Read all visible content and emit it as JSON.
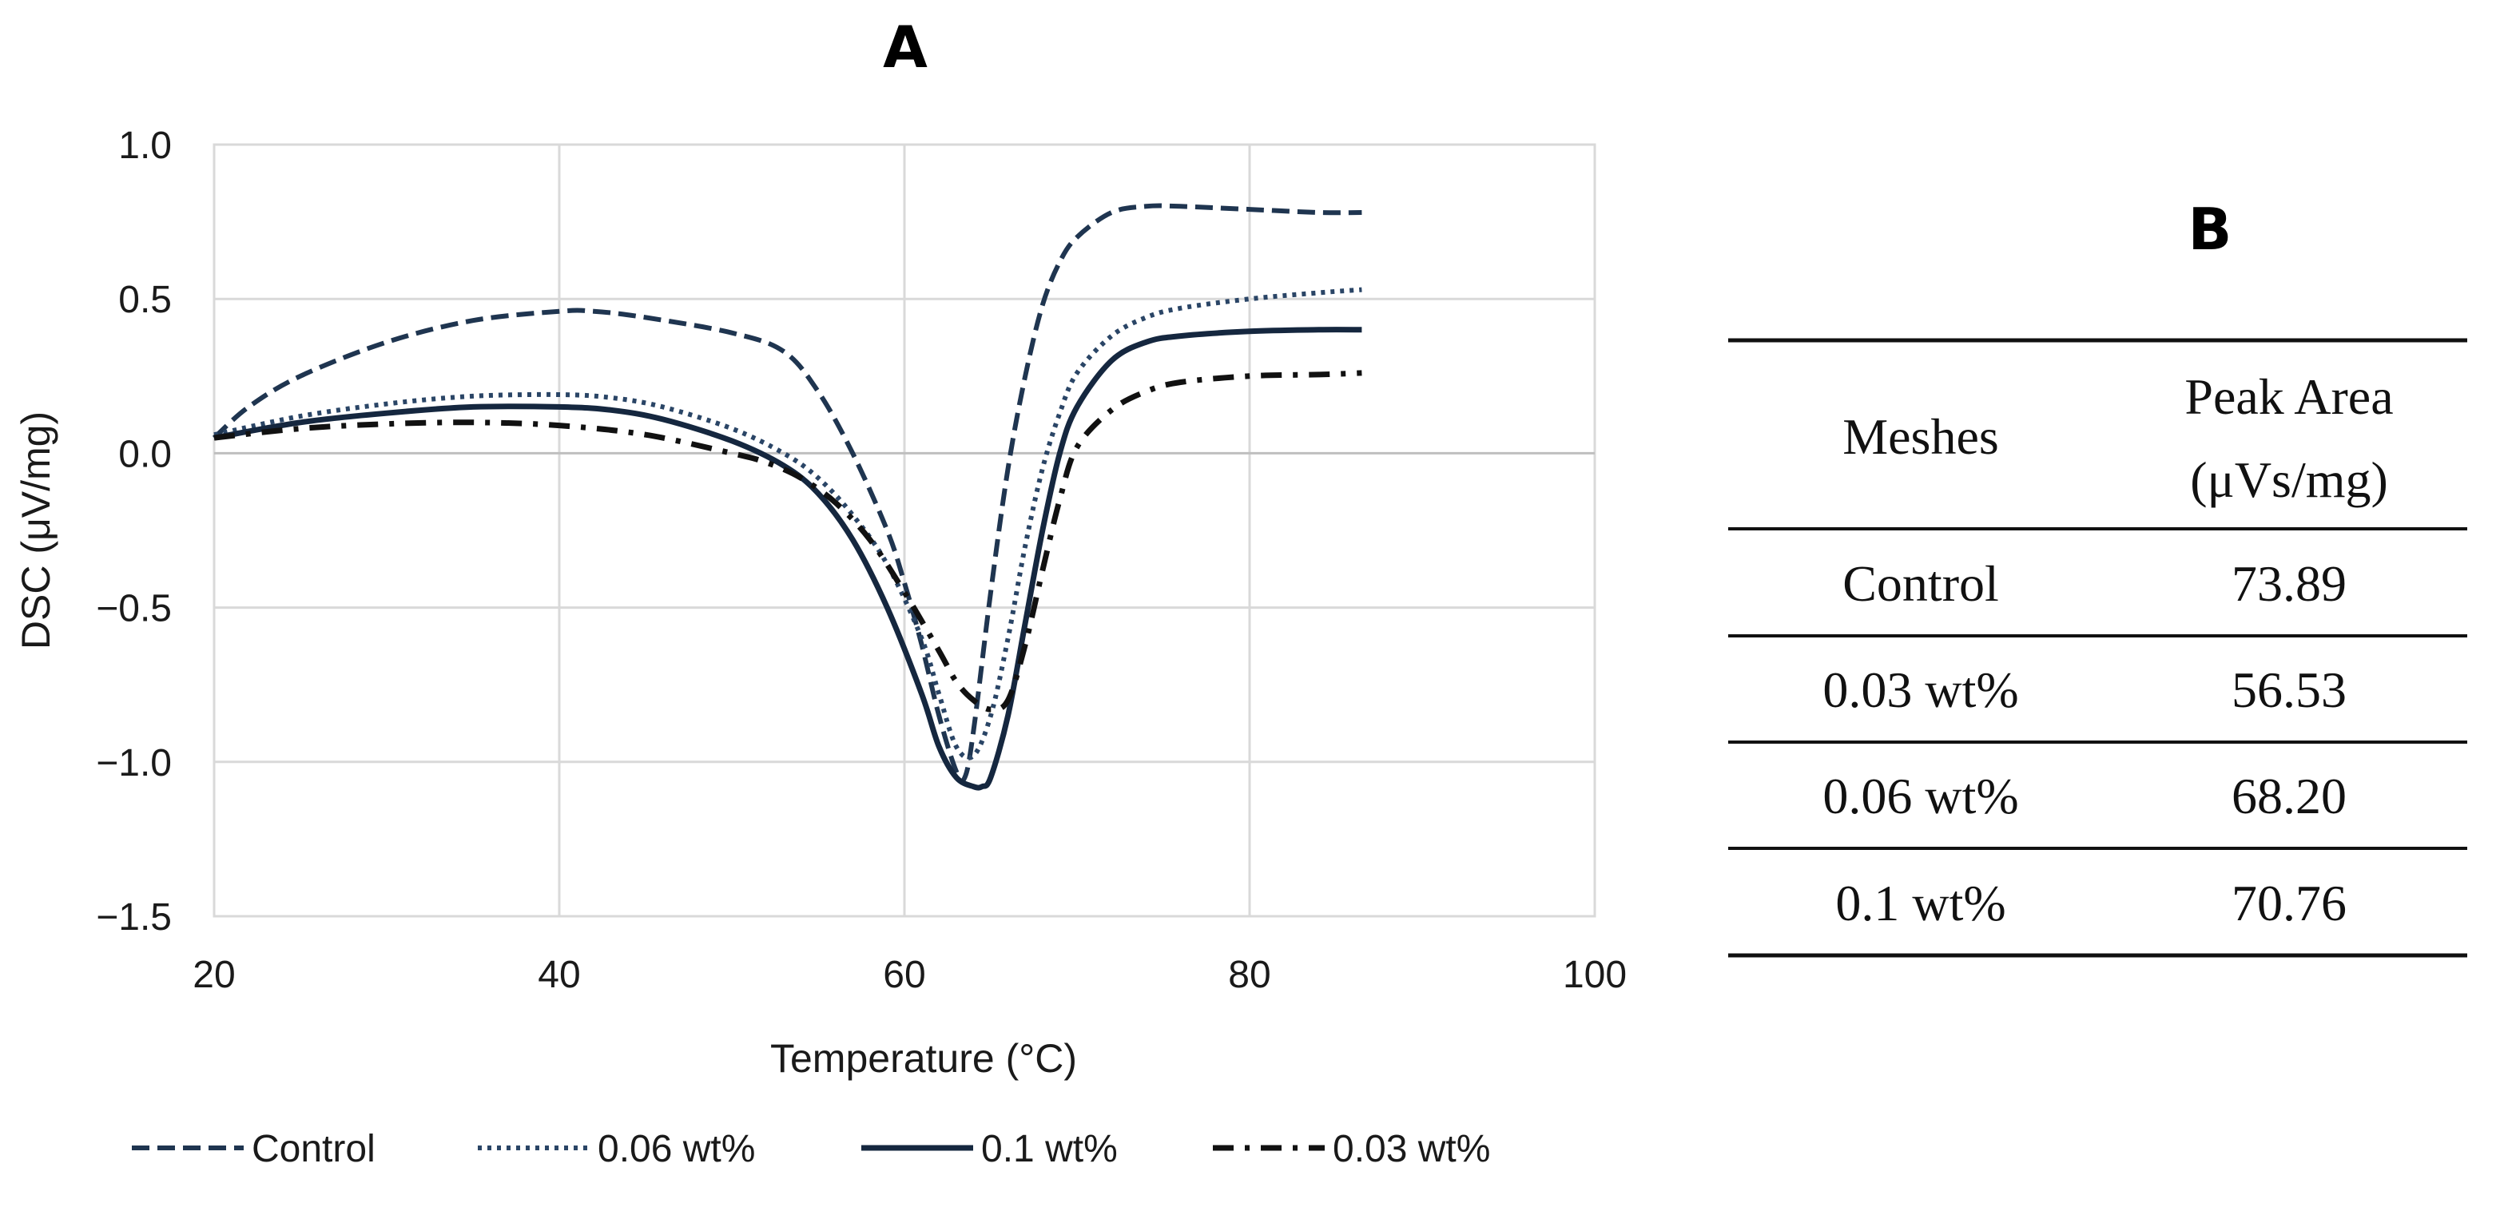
{
  "chart_data": [
    {
      "panel": "A",
      "type": "line",
      "title": "A",
      "xlabel": "Temperature (°C)",
      "ylabel": "DSC (μV/mg)",
      "xlim": [
        20,
        100
      ],
      "ylim": [
        -1.5,
        1.0
      ],
      "xticks": [
        "20",
        "40",
        "60",
        "80",
        "100"
      ],
      "yticks": [
        "1.0",
        "0.5",
        "0.0",
        "−0.5",
        "−1.0",
        "−1.5"
      ],
      "grid": true,
      "legend_position": "bottom",
      "series": [
        {
          "name": "Control",
          "dash": "dashed",
          "color": "#1f3550",
          "x": [
            20,
            22,
            25,
            30,
            35,
            40,
            42,
            45,
            50,
            53,
            55,
            57,
            59,
            60,
            61,
            62,
            63,
            63.5,
            64,
            65,
            66,
            67,
            68,
            69,
            70,
            72,
            74,
            76,
            80,
            84,
            86.5
          ],
          "y": [
            0.05,
            0.15,
            0.25,
            0.36,
            0.43,
            0.46,
            0.46,
            0.44,
            0.39,
            0.33,
            0.2,
            0.0,
            -0.25,
            -0.42,
            -0.62,
            -0.85,
            -1.03,
            -1.05,
            -0.9,
            -0.45,
            -0.05,
            0.25,
            0.48,
            0.62,
            0.7,
            0.78,
            0.8,
            0.8,
            0.79,
            0.78,
            0.78
          ]
        },
        {
          "name": "0.06 wt%",
          "dash": "dotted",
          "color": "#2a4566",
          "x": [
            20,
            25,
            30,
            35,
            40,
            43,
            46,
            50,
            53,
            55,
            57,
            59,
            61,
            62,
            63,
            64,
            65,
            66,
            67,
            68,
            69,
            70,
            72,
            74,
            76,
            80,
            84,
            86.5
          ],
          "y": [
            0.06,
            0.12,
            0.16,
            0.185,
            0.19,
            0.18,
            0.15,
            0.08,
            0.0,
            -0.08,
            -0.2,
            -0.36,
            -0.6,
            -0.78,
            -0.95,
            -0.98,
            -0.85,
            -0.6,
            -0.3,
            -0.05,
            0.13,
            0.26,
            0.38,
            0.44,
            0.47,
            0.5,
            0.52,
            0.53
          ]
        },
        {
          "name": "0.1 wt%",
          "dash": "solid",
          "color": "#15273f",
          "x": [
            20,
            25,
            30,
            35,
            40,
            43,
            46,
            50,
            53,
            55,
            57,
            59,
            61,
            62,
            63,
            64,
            64.5,
            65,
            66,
            67,
            68,
            69,
            70,
            72,
            74,
            76,
            80,
            84,
            86.5
          ],
          "y": [
            0.05,
            0.1,
            0.13,
            0.15,
            0.15,
            0.14,
            0.11,
            0.04,
            -0.04,
            -0.13,
            -0.28,
            -0.5,
            -0.78,
            -0.95,
            -1.05,
            -1.08,
            -1.08,
            -1.05,
            -0.85,
            -0.55,
            -0.25,
            0.0,
            0.15,
            0.3,
            0.36,
            0.38,
            0.395,
            0.4,
            0.4
          ]
        },
        {
          "name": "0.03 wt%",
          "dash": "dashdot",
          "color": "#111111",
          "x": [
            20,
            25,
            30,
            35,
            40,
            45,
            50,
            52,
            54,
            56,
            58,
            60,
            62,
            63,
            64,
            65,
            66,
            67,
            68,
            69,
            70,
            72,
            74,
            76,
            80,
            84,
            86.5
          ],
          "y": [
            0.05,
            0.08,
            0.095,
            0.1,
            0.09,
            0.06,
            0.0,
            -0.03,
            -0.08,
            -0.16,
            -0.28,
            -0.45,
            -0.64,
            -0.74,
            -0.8,
            -0.83,
            -0.8,
            -0.62,
            -0.38,
            -0.15,
            0.02,
            0.14,
            0.2,
            0.23,
            0.25,
            0.255,
            0.26
          ]
        }
      ]
    },
    {
      "panel": "B",
      "type": "table",
      "title": "B",
      "columns": [
        "Meshes",
        "Peak Area"
      ],
      "peak_area_unit": "(μVs/mg)",
      "rows": [
        [
          "Control",
          "73.89"
        ],
        [
          "0.03 wt%",
          "56.53"
        ],
        [
          "0.06 wt%",
          "68.20"
        ],
        [
          "0.1 wt%",
          "70.76"
        ]
      ]
    }
  ]
}
